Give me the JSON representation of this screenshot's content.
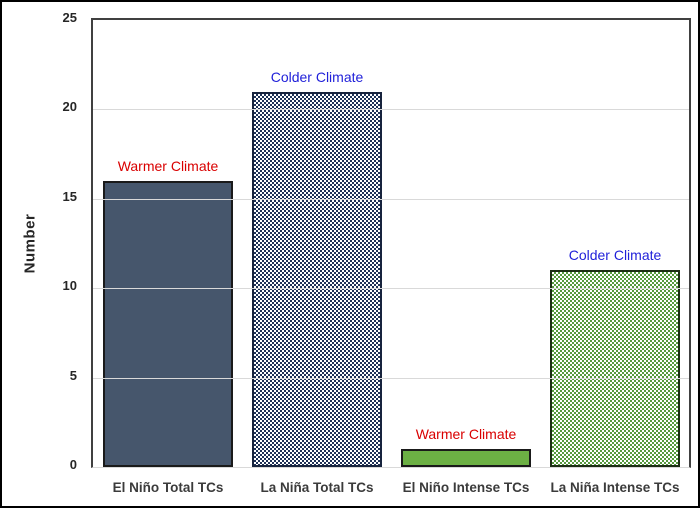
{
  "chart_data": {
    "type": "bar",
    "title": "",
    "xlabel": "",
    "ylabel": "Number",
    "ylim": [
      0,
      25
    ],
    "ytick_interval": 5,
    "yticks": [
      0,
      5,
      10,
      15,
      20,
      25
    ],
    "grid": true,
    "legend": false,
    "categories": [
      "El Niño Total TCs",
      "La Niña Total TCs",
      "El Niño Intense TCs",
      "La Niña Intense TCs"
    ],
    "values": [
      16,
      21,
      1,
      11
    ],
    "bar_annotations": [
      "Warmer Climate",
      "Colder Climate",
      "Warmer Climate",
      "Colder Climate"
    ],
    "bar_annotation_kinds": [
      "warmer",
      "colder",
      "warmer",
      "colder"
    ],
    "bar_fill_styles": [
      "solid-slate",
      "checker-navy",
      "solid-green",
      "checker-green"
    ],
    "colors": {
      "slate_bar": "#46566c",
      "navy_check": "#1e3156",
      "green_bar": "#6cb044",
      "green_check": "#569a3e",
      "gridline": "#d9d9d9",
      "axis_border": "#404040",
      "warmer_label": "#d90000",
      "colder_label": "#1f1fd9"
    }
  }
}
